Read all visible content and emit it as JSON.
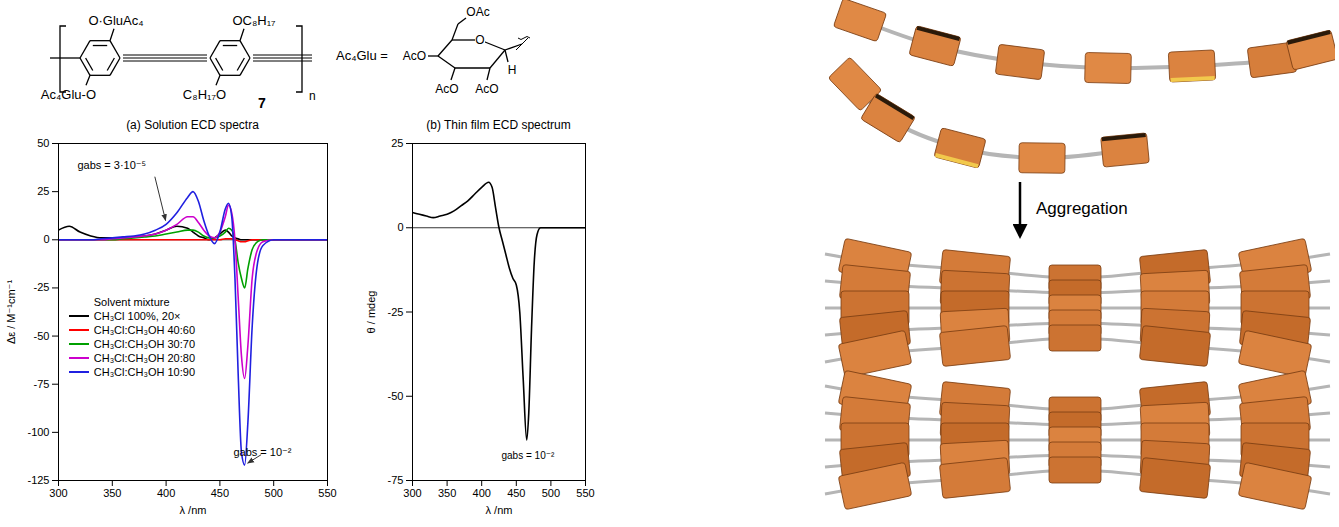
{
  "chart_data": [
    {
      "type": "line",
      "title": "(a) Solution ECD spectra",
      "x_label": "λ /nm",
      "y_label": "Δε / M⁻¹cm⁻¹",
      "x": [
        300,
        310,
        320,
        330,
        340,
        350,
        360,
        370,
        380,
        390,
        400,
        410,
        420,
        425,
        430,
        435,
        440,
        445,
        450,
        455,
        458,
        461,
        464,
        467,
        470,
        473,
        476,
        480,
        485,
        490,
        500,
        525,
        550
      ],
      "xlim": [
        300,
        550
      ],
      "xticks": [
        300,
        350,
        400,
        450,
        500,
        550
      ],
      "ylim": [
        -125,
        50
      ],
      "yticks": [
        -125,
        -100,
        -75,
        -50,
        -25,
        0,
        25,
        50
      ],
      "legend": "lower left",
      "legend_title": "Solvent mixture",
      "series": [
        {
          "name": "CH₃Cl 100%, 20×",
          "color": "#000000",
          "values": [
            5,
            7,
            4,
            2,
            1,
            1,
            1,
            1.5,
            2,
            3,
            5,
            7,
            6,
            4,
            2,
            1,
            0,
            1,
            3,
            5,
            4,
            2,
            1,
            0.5,
            0,
            0,
            0,
            0,
            0,
            0,
            0,
            0,
            0
          ]
        },
        {
          "name": "CH₃Cl:CH₃OH 40:60",
          "color": "#ff0000",
          "values": [
            0,
            0,
            0,
            0,
            0,
            0,
            0,
            0,
            0,
            0,
            0,
            0,
            0,
            0,
            0,
            0,
            0,
            0,
            0,
            0.5,
            0.5,
            0.5,
            0,
            -0.5,
            -1,
            -1,
            -0.5,
            0,
            0,
            0,
            0,
            0,
            0
          ]
        },
        {
          "name": "CH₃Cl:CH₃OH 30:70",
          "color": "#00a000",
          "values": [
            0,
            0,
            0,
            0,
            0,
            0,
            0.5,
            1,
            1.5,
            2,
            3,
            4,
            5,
            5,
            4,
            2,
            1,
            1,
            2,
            4,
            6,
            5,
            0,
            -12,
            -20,
            -25,
            -15,
            -5,
            -1,
            0,
            0,
            0,
            0
          ]
        },
        {
          "name": "CH₃Cl:CH₃OH 20:80",
          "color": "#cc00cc",
          "values": [
            0,
            0,
            0,
            0,
            0,
            0.5,
            1,
            1.5,
            2,
            3,
            5,
            8,
            12,
            12,
            9,
            5,
            2,
            1,
            4,
            12,
            18,
            14,
            0,
            -30,
            -60,
            -72,
            -55,
            -20,
            -5,
            -1,
            0,
            0,
            0
          ]
        },
        {
          "name": "CH₃Cl:CH₃OH 10:90",
          "color": "#2020e0",
          "values": [
            0,
            0,
            0,
            0,
            0.5,
            1,
            1.5,
            2,
            3,
            5,
            8,
            14,
            22,
            25,
            20,
            10,
            2,
            -2,
            4,
            16,
            19,
            12,
            -20,
            -70,
            -110,
            -117,
            -95,
            -45,
            -12,
            -3,
            0,
            0,
            0
          ]
        }
      ],
      "annotations": [
        "gabs = 3·10⁻⁵",
        "gabs = 10⁻²"
      ]
    },
    {
      "type": "line",
      "title": "(b) Thin film ECD spectrum",
      "x_label": "λ /nm",
      "y_label": "θ / mdeg",
      "x": [
        300,
        310,
        320,
        330,
        340,
        350,
        360,
        370,
        380,
        390,
        400,
        410,
        415,
        420,
        425,
        430,
        435,
        440,
        445,
        450,
        455,
        460,
        465,
        468,
        472,
        476,
        480,
        485,
        500,
        525,
        550
      ],
      "values": [
        4.5,
        4,
        3.5,
        3,
        3.5,
        4,
        5,
        6.5,
        8,
        10,
        12,
        13.5,
        12,
        6,
        0,
        -4,
        -8,
        -12,
        -15,
        -17,
        -25,
        -45,
        -63,
        -55,
        -30,
        -10,
        -2,
        0,
        0,
        0,
        0
      ],
      "color": "#000000",
      "xlim": [
        300,
        550
      ],
      "xticks": [
        300,
        350,
        400,
        450,
        500,
        550
      ],
      "ylim": [
        -75,
        25
      ],
      "yticks": [
        -75,
        -50,
        -25,
        0,
        25
      ],
      "annotations": [
        "gabs = 10⁻²"
      ]
    }
  ],
  "structure": {
    "compound": "7",
    "repeat": "n",
    "substituents": [
      "O·GluAc₄",
      "OC₈H₁₇",
      "Ac₄Glu-O",
      "C₈H₁₇O"
    ],
    "sugar_label": "Ac₄Glu =",
    "sugar_groups": [
      "OAc",
      "AcO",
      "AcO",
      "AcO"
    ],
    "ring_oxygen": "O",
    "anomeric_h": "H"
  },
  "illustration": {
    "label": "Aggregation"
  }
}
